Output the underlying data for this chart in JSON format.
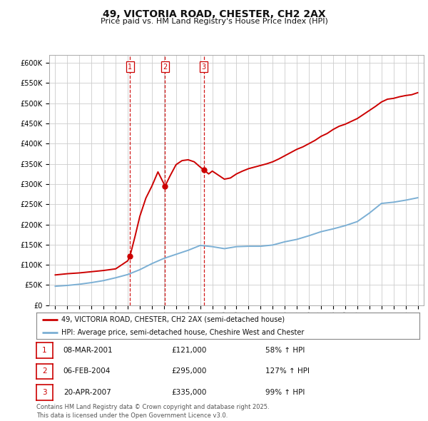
{
  "title": "49, VICTORIA ROAD, CHESTER, CH2 2AX",
  "subtitle": "Price paid vs. HM Land Registry's House Price Index (HPI)",
  "title_fontsize": 10,
  "subtitle_fontsize": 8,
  "background_color": "#ffffff",
  "grid_color": "#cccccc",
  "ylim": [
    0,
    620000
  ],
  "yticks": [
    0,
    50000,
    100000,
    150000,
    200000,
    250000,
    300000,
    350000,
    400000,
    450000,
    500000,
    550000,
    600000
  ],
  "ytick_labels": [
    "£0",
    "£50K",
    "£100K",
    "£150K",
    "£200K",
    "£250K",
    "£300K",
    "£350K",
    "£400K",
    "£450K",
    "£500K",
    "£550K",
    "£600K"
  ],
  "xlim_start": 1994.5,
  "xlim_end": 2025.5,
  "sale_points": [
    {
      "year": 2001.18,
      "price": 121000,
      "label": "1"
    },
    {
      "year": 2004.09,
      "price": 295000,
      "label": "2"
    },
    {
      "year": 2007.3,
      "price": 335000,
      "label": "3"
    }
  ],
  "sale_color": "#cc0000",
  "hpi_color": "#7bafd4",
  "legend_label_sale": "49, VICTORIA ROAD, CHESTER, CH2 2AX (semi-detached house)",
  "legend_label_hpi": "HPI: Average price, semi-detached house, Cheshire West and Chester",
  "table_rows": [
    {
      "num": "1",
      "date": "08-MAR-2001",
      "price": "£121,000",
      "hpi": "58% ↑ HPI"
    },
    {
      "num": "2",
      "date": "06-FEB-2004",
      "price": "£295,000",
      "hpi": "127% ↑ HPI"
    },
    {
      "num": "3",
      "date": "20-APR-2007",
      "price": "£335,000",
      "hpi": "99% ↑ HPI"
    }
  ],
  "footnote": "Contains HM Land Registry data © Crown copyright and database right 2025.\nThis data is licensed under the Open Government Licence v3.0.",
  "hpi_data": {
    "years": [
      1995,
      1996,
      1997,
      1998,
      1999,
      2000,
      2001,
      2002,
      2003,
      2004,
      2005,
      2006,
      2007,
      2008,
      2009,
      2010,
      2011,
      2012,
      2013,
      2014,
      2015,
      2016,
      2017,
      2018,
      2019,
      2020,
      2021,
      2022,
      2023,
      2024,
      2025
    ],
    "values": [
      47000,
      49000,
      52000,
      56000,
      61000,
      68000,
      76000,
      88000,
      103000,
      116000,
      126000,
      136000,
      148000,
      145000,
      140000,
      145000,
      146000,
      146000,
      149000,
      157000,
      163000,
      172000,
      182000,
      189000,
      197000,
      207000,
      228000,
      252000,
      255000,
      260000,
      266000
    ]
  },
  "sale_line_data": {
    "years": [
      1995.0,
      1996.0,
      1997.0,
      1998.0,
      1999.0,
      2000.0,
      2000.5,
      2001.0,
      2001.18,
      2001.6,
      2002.0,
      2002.5,
      2003.0,
      2003.5,
      2004.09,
      2004.5,
      2005.0,
      2005.5,
      2006.0,
      2006.5,
      2007.0,
      2007.3,
      2007.7,
      2008.0,
      2008.5,
      2009.0,
      2009.5,
      2010.0,
      2010.5,
      2011.0,
      2011.5,
      2012.0,
      2012.5,
      2013.0,
      2013.5,
      2014.0,
      2014.5,
      2015.0,
      2015.5,
      2016.0,
      2016.5,
      2017.0,
      2017.5,
      2018.0,
      2018.5,
      2019.0,
      2019.5,
      2020.0,
      2020.5,
      2021.0,
      2021.5,
      2022.0,
      2022.5,
      2023.0,
      2023.5,
      2024.0,
      2024.5,
      2025.0
    ],
    "values": [
      75000,
      78000,
      80000,
      83000,
      86000,
      90000,
      100000,
      110000,
      121000,
      170000,
      220000,
      265000,
      295000,
      330000,
      295000,
      320000,
      348000,
      358000,
      360000,
      355000,
      342000,
      335000,
      325000,
      332000,
      322000,
      312000,
      315000,
      325000,
      332000,
      338000,
      342000,
      346000,
      350000,
      355000,
      362000,
      370000,
      378000,
      386000,
      392000,
      400000,
      408000,
      418000,
      425000,
      435000,
      443000,
      448000,
      455000,
      462000,
      472000,
      482000,
      492000,
      503000,
      510000,
      512000,
      516000,
      519000,
      521000,
      526000
    ]
  }
}
